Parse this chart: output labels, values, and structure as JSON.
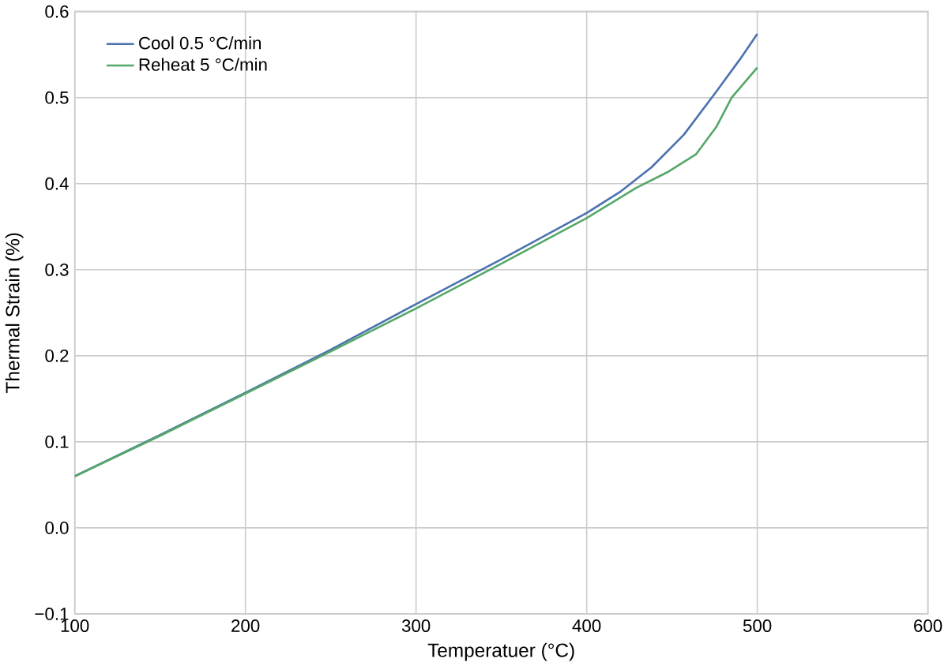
{
  "chart_data": {
    "type": "line",
    "xlabel": "Temperatuer (°C)",
    "ylabel": "Thermal Strain (%)",
    "xlim": [
      100,
      600
    ],
    "xticks": [
      100,
      200,
      300,
      400,
      500,
      600
    ],
    "ylim": [
      -0.1,
      0.6
    ],
    "yticks": [
      {
        "value": -0.1,
        "label": "−0.1"
      },
      {
        "value": 0.0,
        "label": "0.0"
      },
      {
        "value": 0.1,
        "label": "0.1"
      },
      {
        "value": 0.2,
        "label": "0.2"
      },
      {
        "value": 0.3,
        "label": "0.3"
      },
      {
        "value": 0.4,
        "label": "0.4"
      },
      {
        "value": 0.5,
        "label": "0.5"
      },
      {
        "value": 0.6,
        "label": "0.6"
      }
    ],
    "grid": true,
    "legend": "top left",
    "series": [
      {
        "name": "Cool 0.5 °C/min",
        "color": "#4c72b0",
        "x": [
          100,
          150,
          200,
          250,
          300,
          350,
          400,
          420,
          438,
          457,
          476,
          490,
          500
        ],
        "values": [
          0.06,
          0.108,
          0.157,
          0.207,
          0.26,
          0.312,
          0.366,
          0.391,
          0.419,
          0.457,
          0.507,
          0.545,
          0.574
        ]
      },
      {
        "name": "Reheat 5 °C/min",
        "color": "#55a868",
        "x": [
          100,
          150,
          200,
          250,
          300,
          350,
          400,
          429,
          448,
          464,
          476,
          485,
          500
        ],
        "values": [
          0.06,
          0.107,
          0.156,
          0.205,
          0.255,
          0.307,
          0.36,
          0.395,
          0.414,
          0.434,
          0.466,
          0.5,
          0.535
        ]
      }
    ]
  }
}
